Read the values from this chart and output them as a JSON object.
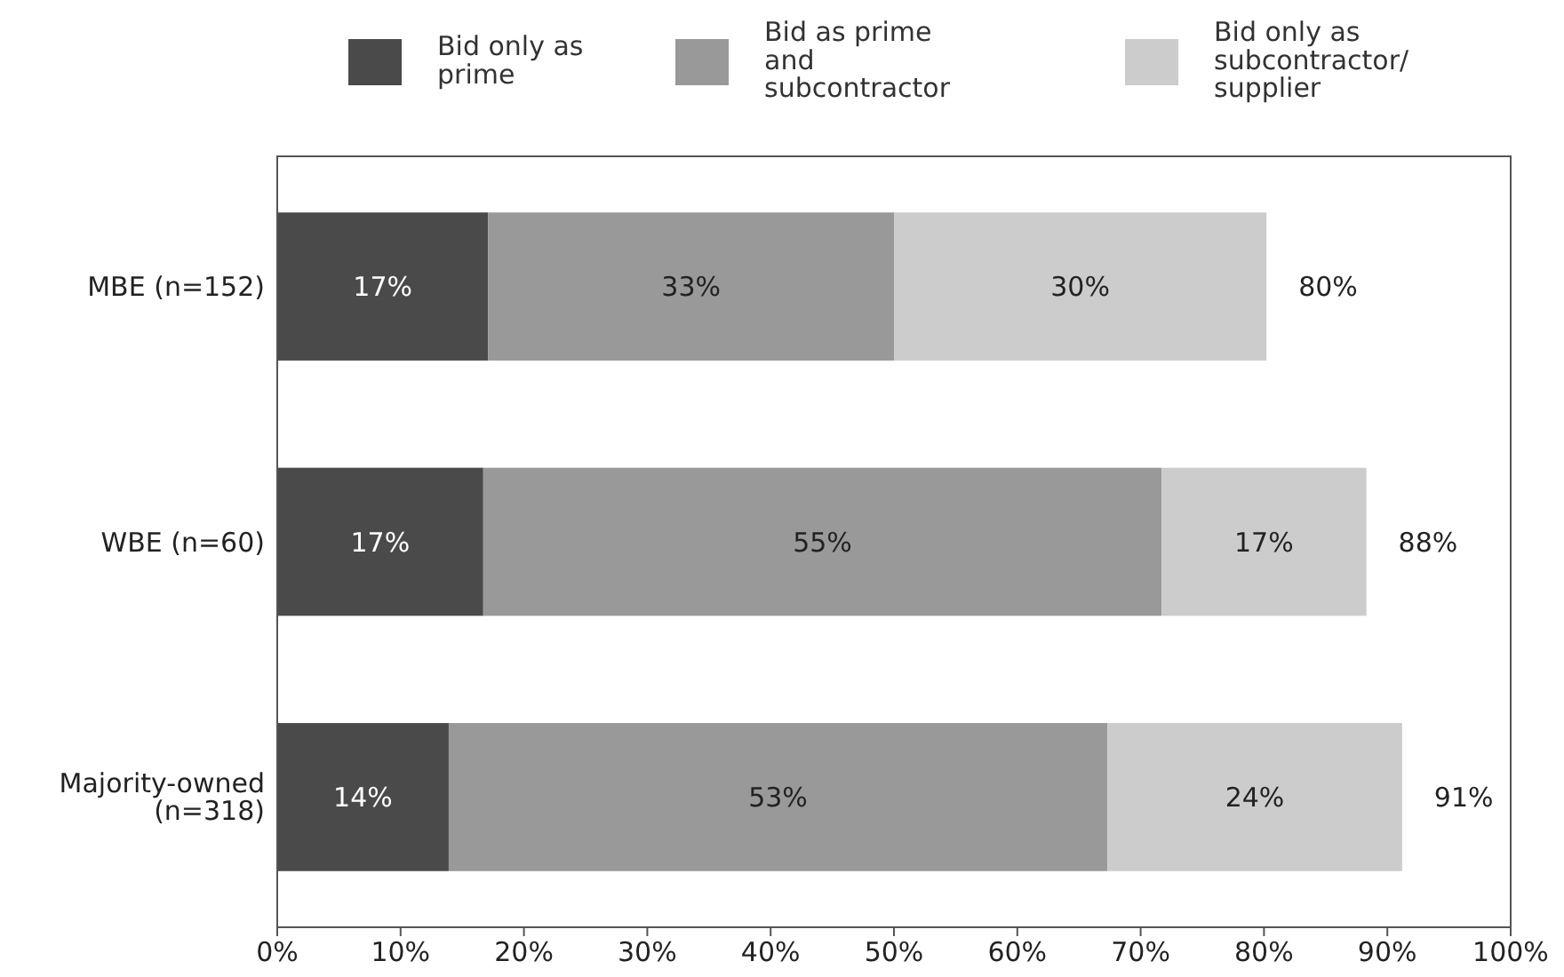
{
  "chart_data": {
    "type": "bar",
    "orientation": "horizontal",
    "stacked": true,
    "categories": [
      "MBE (n=152)",
      "WBE (n=60)",
      "Majority-owned (n=318)"
    ],
    "series": [
      {
        "name": "Bid only as prime",
        "color": "#4a4a4a",
        "values": [
          17.1,
          16.7,
          13.9
        ],
        "value_labels": [
          "17%",
          "17%",
          "14%"
        ]
      },
      {
        "name": "Bid as prime and subcontractor",
        "color": "#999999",
        "values": [
          32.9,
          55,
          53.4
        ],
        "value_labels": [
          "33%",
          "55%",
          "53%"
        ]
      },
      {
        "name": "Bid only as subcontractor/ supplier",
        "color": "#cccccc",
        "values": [
          30.2,
          16.6,
          23.9
        ],
        "value_labels": [
          "30%",
          "17%",
          "24%"
        ]
      }
    ],
    "totals": [
      "80%",
      "88%",
      "91%"
    ],
    "xlim": [
      0,
      100
    ],
    "xticks": [
      {
        "value": 0,
        "label": "0%"
      },
      {
        "value": 10,
        "label": "10%"
      },
      {
        "value": 20,
        "label": "20%"
      },
      {
        "value": 30,
        "label": "30%"
      },
      {
        "value": 40,
        "label": "40%"
      },
      {
        "value": 50,
        "label": "50%"
      },
      {
        "value": 60,
        "label": "60%"
      },
      {
        "value": 70,
        "label": "70%"
      },
      {
        "value": 80,
        "label": "80%"
      },
      {
        "value": 90,
        "label": "90%"
      },
      {
        "value": 100,
        "label": "100%"
      }
    ],
    "legend": "top",
    "grid": false
  }
}
